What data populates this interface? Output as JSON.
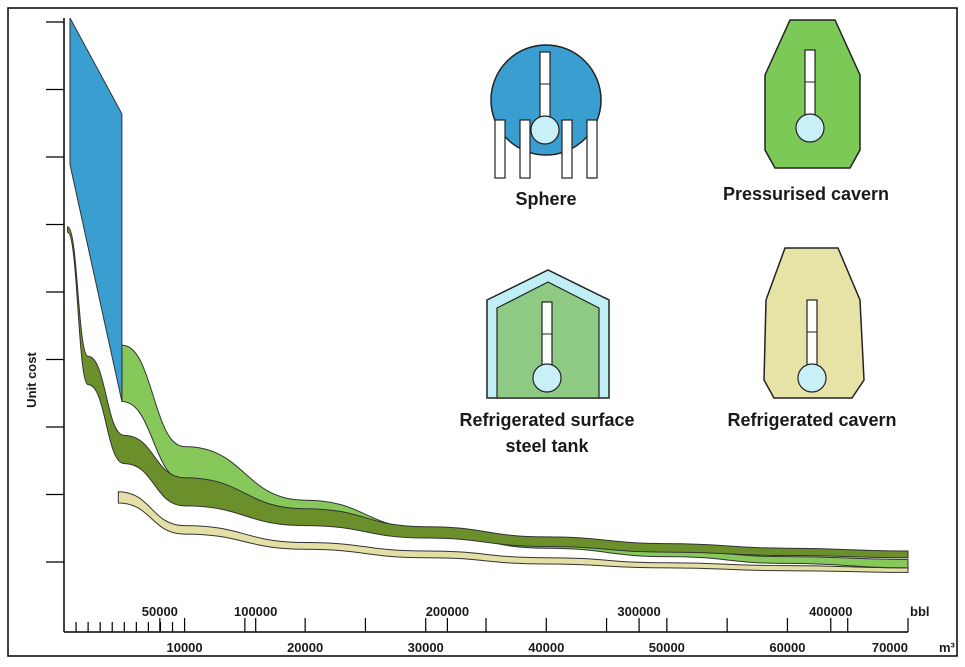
{
  "chart_data": {
    "type": "area",
    "title": "",
    "ylabel": "Unit cost",
    "xlabel_m3": "m³",
    "xlabel_bbl": "bbl",
    "x_units_m3_ticks": [
      "10000",
      "20000",
      "30000",
      "40000",
      "50000",
      "60000",
      "70000"
    ],
    "x_units_bbl_ticks": [
      "50000",
      "100000",
      "200000",
      "300000",
      "400000"
    ],
    "xlim_m3": [
      0,
      70000
    ],
    "y_axis_tick_count": 9,
    "y_values_labelled": false,
    "series": [
      {
        "name": "Sphere",
        "color": "#3a9fd0",
        "upper": [
          [
            500,
            10.0
          ],
          [
            4800,
            8.3
          ],
          [
            4800,
            3.2
          ]
        ],
        "lower": [
          [
            500,
            7.4
          ],
          [
            4800,
            3.2
          ]
        ]
      },
      {
        "name": "Pressurised cavern",
        "color": "#86c95a",
        "upper": [
          [
            4800,
            4.2
          ],
          [
            10000,
            2.4
          ],
          [
            20000,
            1.45
          ],
          [
            30000,
            0.95
          ],
          [
            40000,
            0.7
          ],
          [
            50000,
            0.55
          ],
          [
            60000,
            0.45
          ],
          [
            70000,
            0.4
          ]
        ],
        "lower": [
          [
            4800,
            3.2
          ],
          [
            10000,
            1.8
          ],
          [
            20000,
            1.2
          ],
          [
            30000,
            0.85
          ],
          [
            40000,
            0.6
          ],
          [
            50000,
            0.45
          ],
          [
            60000,
            0.33
          ],
          [
            70000,
            0.25
          ]
        ]
      },
      {
        "name": "Refrigerated surface steel tank",
        "color": "#6b8f2a",
        "upper": [
          [
            300,
            6.3
          ],
          [
            2000,
            4.0
          ],
          [
            5000,
            2.6
          ],
          [
            10000,
            1.85
          ],
          [
            20000,
            1.3
          ],
          [
            30000,
            0.98
          ],
          [
            40000,
            0.8
          ],
          [
            50000,
            0.68
          ],
          [
            60000,
            0.6
          ],
          [
            70000,
            0.55
          ]
        ],
        "lower": [
          [
            300,
            6.2
          ],
          [
            2000,
            3.5
          ],
          [
            5000,
            2.1
          ],
          [
            10000,
            1.35
          ],
          [
            20000,
            1.0
          ],
          [
            30000,
            0.78
          ],
          [
            40000,
            0.63
          ],
          [
            50000,
            0.53
          ],
          [
            60000,
            0.47
          ],
          [
            70000,
            0.43
          ]
        ]
      },
      {
        "name": "Refrigerated cavern",
        "color": "#e4dfa4",
        "upper": [
          [
            4500,
            1.6
          ],
          [
            10000,
            1.0
          ],
          [
            20000,
            0.7
          ],
          [
            30000,
            0.55
          ],
          [
            40000,
            0.43
          ],
          [
            50000,
            0.34
          ],
          [
            60000,
            0.29
          ],
          [
            70000,
            0.25
          ]
        ],
        "lower": [
          [
            4500,
            1.4
          ],
          [
            10000,
            0.85
          ],
          [
            20000,
            0.58
          ],
          [
            30000,
            0.43
          ],
          [
            40000,
            0.32
          ],
          [
            50000,
            0.25
          ],
          [
            60000,
            0.2
          ],
          [
            70000,
            0.17
          ]
        ]
      }
    ],
    "icons": [
      {
        "label": "Sphere",
        "color": "#3a9fd0"
      },
      {
        "label": "Pressurised cavern",
        "color": "#7cc957"
      },
      {
        "label_line1": "Refrigerated surface",
        "label_line2": "steel tank",
        "color": "#8fca84"
      },
      {
        "label": "Refrigerated cavern",
        "color": "#e7e2a5"
      }
    ],
    "grid": false,
    "legend_placement": "top-right (illustrated icons)"
  }
}
